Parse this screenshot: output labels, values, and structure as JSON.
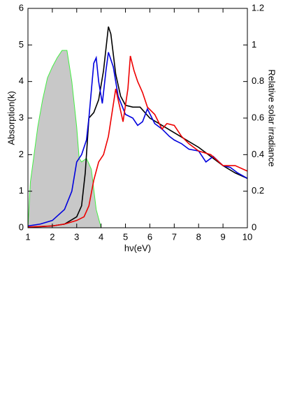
{
  "chart_data": {
    "type": "line",
    "x_label": "hν(eV)",
    "y_label": "Absorption(k)",
    "y2_label": "Relative solar irradiance",
    "xlim": [
      1,
      10
    ],
    "xticks": [
      1,
      2,
      3,
      4,
      5,
      6,
      7,
      8,
      9,
      10
    ],
    "ylim": [
      0,
      6
    ],
    "yticks": [
      0,
      1,
      2,
      3,
      4,
      5,
      6
    ],
    "y2lim": [
      0,
      1.2
    ],
    "y2ticks": [
      0,
      0.2,
      0.4,
      0.6,
      0.8,
      1,
      1.2
    ],
    "series": [
      {
        "type": "area",
        "axis": "y2",
        "color": "#44ee44",
        "fill": "#c8c8c8",
        "x": [
          1,
          1.1,
          1.2,
          1.4,
          1.6,
          1.8,
          2,
          2.2,
          2.4,
          2.6,
          2.8,
          3,
          3.1,
          3.2,
          3.4,
          3.6,
          3.8,
          4.0
        ],
        "values": [
          0.0,
          0.25,
          0.35,
          0.55,
          0.7,
          0.82,
          0.88,
          0.93,
          0.97,
          0.97,
          0.8,
          0.55,
          0.38,
          0.36,
          0.38,
          0.32,
          0.1,
          0.0
        ]
      },
      {
        "color": "#000000",
        "x": [
          1,
          1.5,
          2,
          2.5,
          3,
          3.2,
          3.35,
          3.5,
          3.7,
          3.9,
          4.1,
          4.3,
          4.4,
          4.6,
          4.8,
          5,
          5.3,
          5.6,
          6,
          6.5,
          7,
          7.5,
          8,
          8.5,
          9,
          9.5,
          10
        ],
        "values": [
          0.02,
          0.03,
          0.05,
          0.1,
          0.3,
          0.6,
          1.5,
          3.0,
          3.15,
          3.5,
          4.3,
          5.5,
          5.3,
          4.2,
          3.6,
          3.35,
          3.3,
          3.3,
          3.0,
          2.8,
          2.6,
          2.4,
          2.2,
          1.95,
          1.7,
          1.5,
          1.35
        ]
      },
      {
        "color": "#0000dd",
        "x": [
          1,
          1.5,
          2,
          2.5,
          2.8,
          3,
          3.2,
          3.4,
          3.5,
          3.7,
          3.8,
          3.9,
          4.05,
          4.2,
          4.3,
          4.5,
          4.7,
          5,
          5.3,
          5.5,
          5.7,
          5.9,
          6.2,
          6.5,
          6.8,
          7,
          7.3,
          7.6,
          8,
          8.3,
          8.6,
          9,
          9.3,
          9.6,
          10
        ],
        "values": [
          0.05,
          0.1,
          0.2,
          0.5,
          1.0,
          1.8,
          2.0,
          2.4,
          3.0,
          4.5,
          4.65,
          4.0,
          3.4,
          4.3,
          4.8,
          4.4,
          3.6,
          3.1,
          3.0,
          2.8,
          2.9,
          3.25,
          2.85,
          2.7,
          2.5,
          2.4,
          2.3,
          2.15,
          2.1,
          1.8,
          1.95,
          1.7,
          1.65,
          1.5,
          1.35
        ]
      },
      {
        "color": "#ee0000",
        "x": [
          1,
          2,
          2.5,
          3,
          3.3,
          3.5,
          3.7,
          3.9,
          4.1,
          4.3,
          4.6,
          4.9,
          5.1,
          5.2,
          5.35,
          5.5,
          5.7,
          5.9,
          6.2,
          6.5,
          6.7,
          7,
          7.3,
          7.6,
          8,
          8.5,
          9,
          9.5,
          10
        ],
        "values": [
          0.02,
          0.05,
          0.1,
          0.2,
          0.3,
          0.6,
          1.3,
          1.8,
          2.0,
          2.5,
          3.8,
          2.9,
          3.8,
          4.7,
          4.3,
          4.0,
          3.7,
          3.3,
          3.1,
          2.7,
          2.85,
          2.8,
          2.5,
          2.3,
          2.1,
          2.0,
          1.7,
          1.7,
          1.55
        ]
      }
    ]
  }
}
